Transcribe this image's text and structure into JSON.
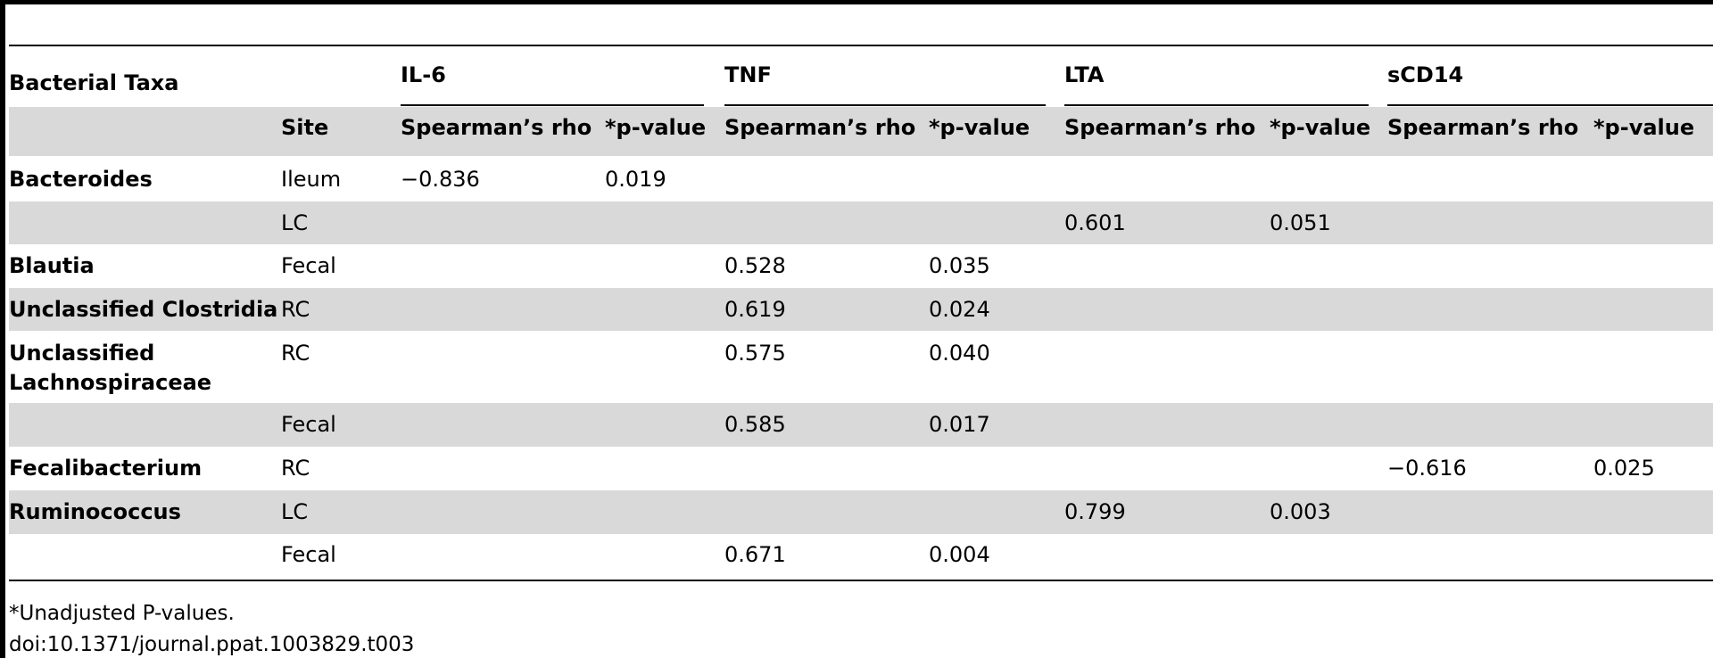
{
  "table": {
    "header": {
      "taxa_label": "Bacterial Taxa",
      "site_label": "Site",
      "groups": [
        "IL-6",
        "TNF",
        "LTA",
        "sCD14"
      ],
      "rho_label": "Spearman’s rho",
      "p_label": "*p-value"
    },
    "rows": [
      {
        "taxa": "Bacteroides",
        "site": "Ileum",
        "il6_rho": "−0.836",
        "il6_p": "0.019",
        "tnf_rho": "",
        "tnf_p": "",
        "lta_rho": "",
        "lta_p": "",
        "scd14_rho": "",
        "scd14_p": ""
      },
      {
        "taxa": "",
        "site": "LC",
        "il6_rho": "",
        "il6_p": "",
        "tnf_rho": "",
        "tnf_p": "",
        "lta_rho": "0.601",
        "lta_p": "0.051",
        "scd14_rho": "",
        "scd14_p": ""
      },
      {
        "taxa": "Blautia",
        "site": "Fecal",
        "il6_rho": "",
        "il6_p": "",
        "tnf_rho": "0.528",
        "tnf_p": "0.035",
        "lta_rho": "",
        "lta_p": "",
        "scd14_rho": "",
        "scd14_p": ""
      },
      {
        "taxa": "Unclassified Clostridia",
        "site": "RC",
        "il6_rho": "",
        "il6_p": "",
        "tnf_rho": "0.619",
        "tnf_p": "0.024",
        "lta_rho": "",
        "lta_p": "",
        "scd14_rho": "",
        "scd14_p": ""
      },
      {
        "taxa_line1": "Unclassified",
        "taxa_line2": "Lachnospiraceae",
        "site": "RC",
        "il6_rho": "",
        "il6_p": "",
        "tnf_rho": "0.575",
        "tnf_p": "0.040",
        "lta_rho": "",
        "lta_p": "",
        "scd14_rho": "",
        "scd14_p": ""
      },
      {
        "taxa": "",
        "site": "Fecal",
        "il6_rho": "",
        "il6_p": "",
        "tnf_rho": "0.585",
        "tnf_p": "0.017",
        "lta_rho": "",
        "lta_p": "",
        "scd14_rho": "",
        "scd14_p": ""
      },
      {
        "taxa": "Fecalibacterium",
        "site": "RC",
        "il6_rho": "",
        "il6_p": "",
        "tnf_rho": "",
        "tnf_p": "",
        "lta_rho": "",
        "lta_p": "",
        "scd14_rho": "−0.616",
        "scd14_p": "0.025"
      },
      {
        "taxa": "Ruminococcus",
        "site": "LC",
        "il6_rho": "",
        "il6_p": "",
        "tnf_rho": "",
        "tnf_p": "",
        "lta_rho": "0.799",
        "lta_p": "0.003",
        "scd14_rho": "",
        "scd14_p": ""
      },
      {
        "taxa": "",
        "site": "Fecal",
        "il6_rho": "",
        "il6_p": "",
        "tnf_rho": "0.671",
        "tnf_p": "0.004",
        "lta_rho": "",
        "lta_p": "",
        "scd14_rho": "",
        "scd14_p": ""
      }
    ]
  },
  "footnote": "*Unadjusted P-values.",
  "doi": "doi:10.1371/journal.ppat.1003829.t003"
}
